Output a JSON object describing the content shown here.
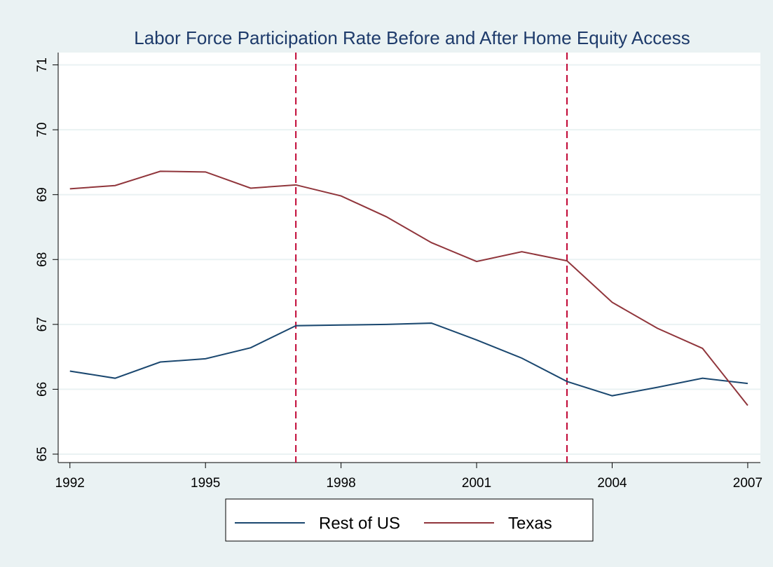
{
  "chart_data": {
    "type": "line",
    "title": "Labor Force Participation Rate Before and After Home Equity Access",
    "x": [
      1992,
      1993,
      1994,
      1995,
      1996,
      1997,
      1998,
      1999,
      2000,
      2001,
      2002,
      2003,
      2004,
      2005,
      2006,
      2007
    ],
    "series": [
      {
        "name": "Rest of US",
        "color": "#1a476f",
        "values": [
          66.28,
          66.17,
          66.42,
          66.47,
          66.64,
          66.98,
          66.99,
          67.0,
          67.02,
          66.76,
          66.48,
          66.12,
          65.9,
          66.03,
          66.17,
          66.09
        ]
      },
      {
        "name": "Texas",
        "color": "#90353b",
        "values": [
          69.09,
          69.14,
          69.36,
          69.35,
          69.1,
          69.15,
          68.98,
          68.66,
          68.26,
          67.97,
          68.12,
          67.98,
          67.34,
          66.94,
          66.63,
          65.75
        ]
      }
    ],
    "vlines": [
      1997,
      2003
    ],
    "vline_color": "#c10534",
    "xlim": [
      1991.74,
      2007.28
    ],
    "xticks": [
      1992,
      1995,
      1998,
      2001,
      2004,
      2007
    ],
    "ylim": [
      64.87,
      71.19
    ],
    "yticks": [
      65,
      66,
      67,
      68,
      69,
      70,
      71
    ],
    "grid": true,
    "legend": "bottom"
  }
}
